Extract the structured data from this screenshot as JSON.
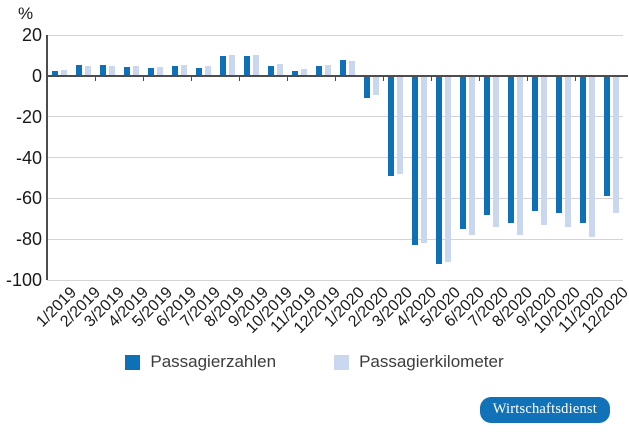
{
  "chart_data": {
    "type": "bar",
    "title": "",
    "unit_label": "%",
    "xlabel": "",
    "ylabel": "%",
    "ylim": [
      -100,
      20
    ],
    "yticks": [
      20,
      0,
      -20,
      -40,
      -60,
      -80,
      -100
    ],
    "grid": true,
    "legend_position": "bottom",
    "categories": [
      "1/2019",
      "2/2019",
      "3/2019",
      "4/2019",
      "5/2019",
      "6/2019",
      "7/2019",
      "8/2019",
      "9/2019",
      "10/2019",
      "11/2019",
      "12/2019",
      "1/2020",
      "2/2020",
      "3/2020",
      "4/2020",
      "5/2020",
      "6/2020",
      "7/2020",
      "8/2020",
      "9/2020",
      "10/2020",
      "11/2020",
      "12/2020"
    ],
    "series": [
      {
        "name": "Passagierzahlen",
        "color": "#0e71b8",
        "values": [
          2.3,
          5.5,
          5.3,
          4.3,
          3.8,
          4.9,
          3.9,
          9.7,
          9.7,
          5.0,
          2.4,
          4.6,
          8.0,
          -11,
          -49,
          -83,
          -92,
          -75,
          -68,
          -72,
          -66,
          -67,
          -72,
          -59
        ]
      },
      {
        "name": "Passagierkilometer",
        "color": "#c9d7ef",
        "values": [
          3.1,
          5.0,
          4.7,
          5.0,
          4.4,
          5.4,
          4.7,
          10.0,
          10.0,
          5.7,
          3.2,
          5.2,
          7.5,
          -9.5,
          -48,
          -82,
          -91,
          -78,
          -74,
          -78,
          -73,
          -74,
          -79,
          -67
        ]
      }
    ]
  },
  "colors": {
    "grid": "#d4d4d4",
    "axis": "#4d4d4d",
    "text": "#1a1a1a"
  },
  "branding": {
    "badge": "Wirtschaftsdienst",
    "badge_color": "#1272b8"
  }
}
